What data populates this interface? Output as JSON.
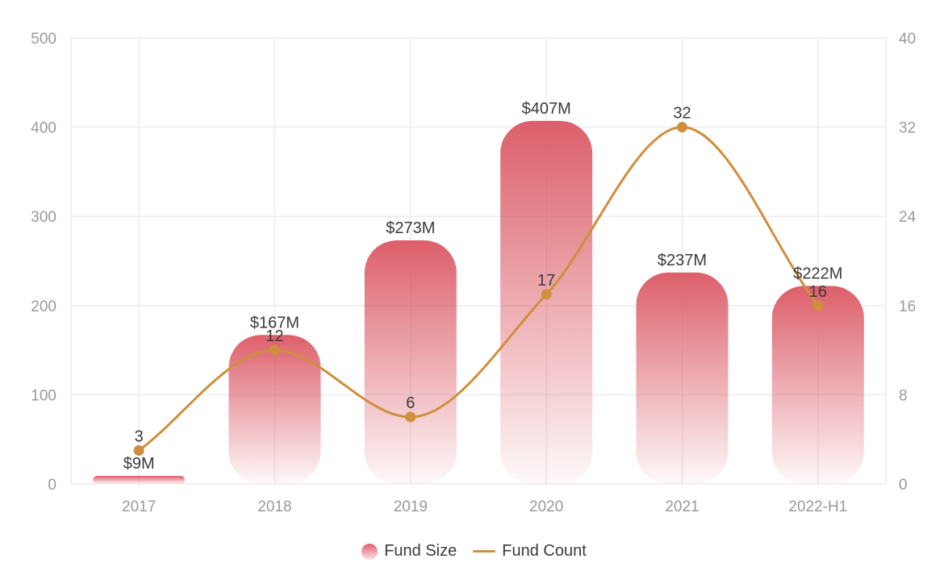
{
  "chart_data": {
    "type": "bar",
    "categories": [
      "2017",
      "2018",
      "2019",
      "2020",
      "2021",
      "2022-H1"
    ],
    "series": [
      {
        "name": "Fund Size",
        "type": "bar",
        "axis": "left",
        "values": [
          9,
          167,
          273,
          407,
          237,
          222
        ],
        "labels": [
          "$9M",
          "$167M",
          "$273M",
          "$407M",
          "$237M",
          "$222M"
        ],
        "color": "#dc5f6a"
      },
      {
        "name": "Fund Count",
        "type": "line",
        "axis": "right",
        "values": [
          3,
          12,
          6,
          17,
          32,
          16
        ],
        "labels": [
          "3",
          "12",
          "6",
          "17",
          "32",
          "16"
        ],
        "color": "#cf8f3c"
      }
    ],
    "y_left": {
      "ylim": [
        0,
        500
      ],
      "ticks": [
        "0",
        "100",
        "200",
        "300",
        "400",
        "500"
      ]
    },
    "y_right": {
      "ylim": [
        0,
        40
      ],
      "ticks": [
        "0",
        "8",
        "16",
        "24",
        "32",
        "40"
      ]
    },
    "grid": true,
    "legend_position": "bottom-center"
  },
  "legend": {
    "items": [
      {
        "label": "Fund Size",
        "color": "#dc5f6a"
      },
      {
        "label": "Fund Count",
        "color": "#cf8f3c"
      }
    ]
  }
}
